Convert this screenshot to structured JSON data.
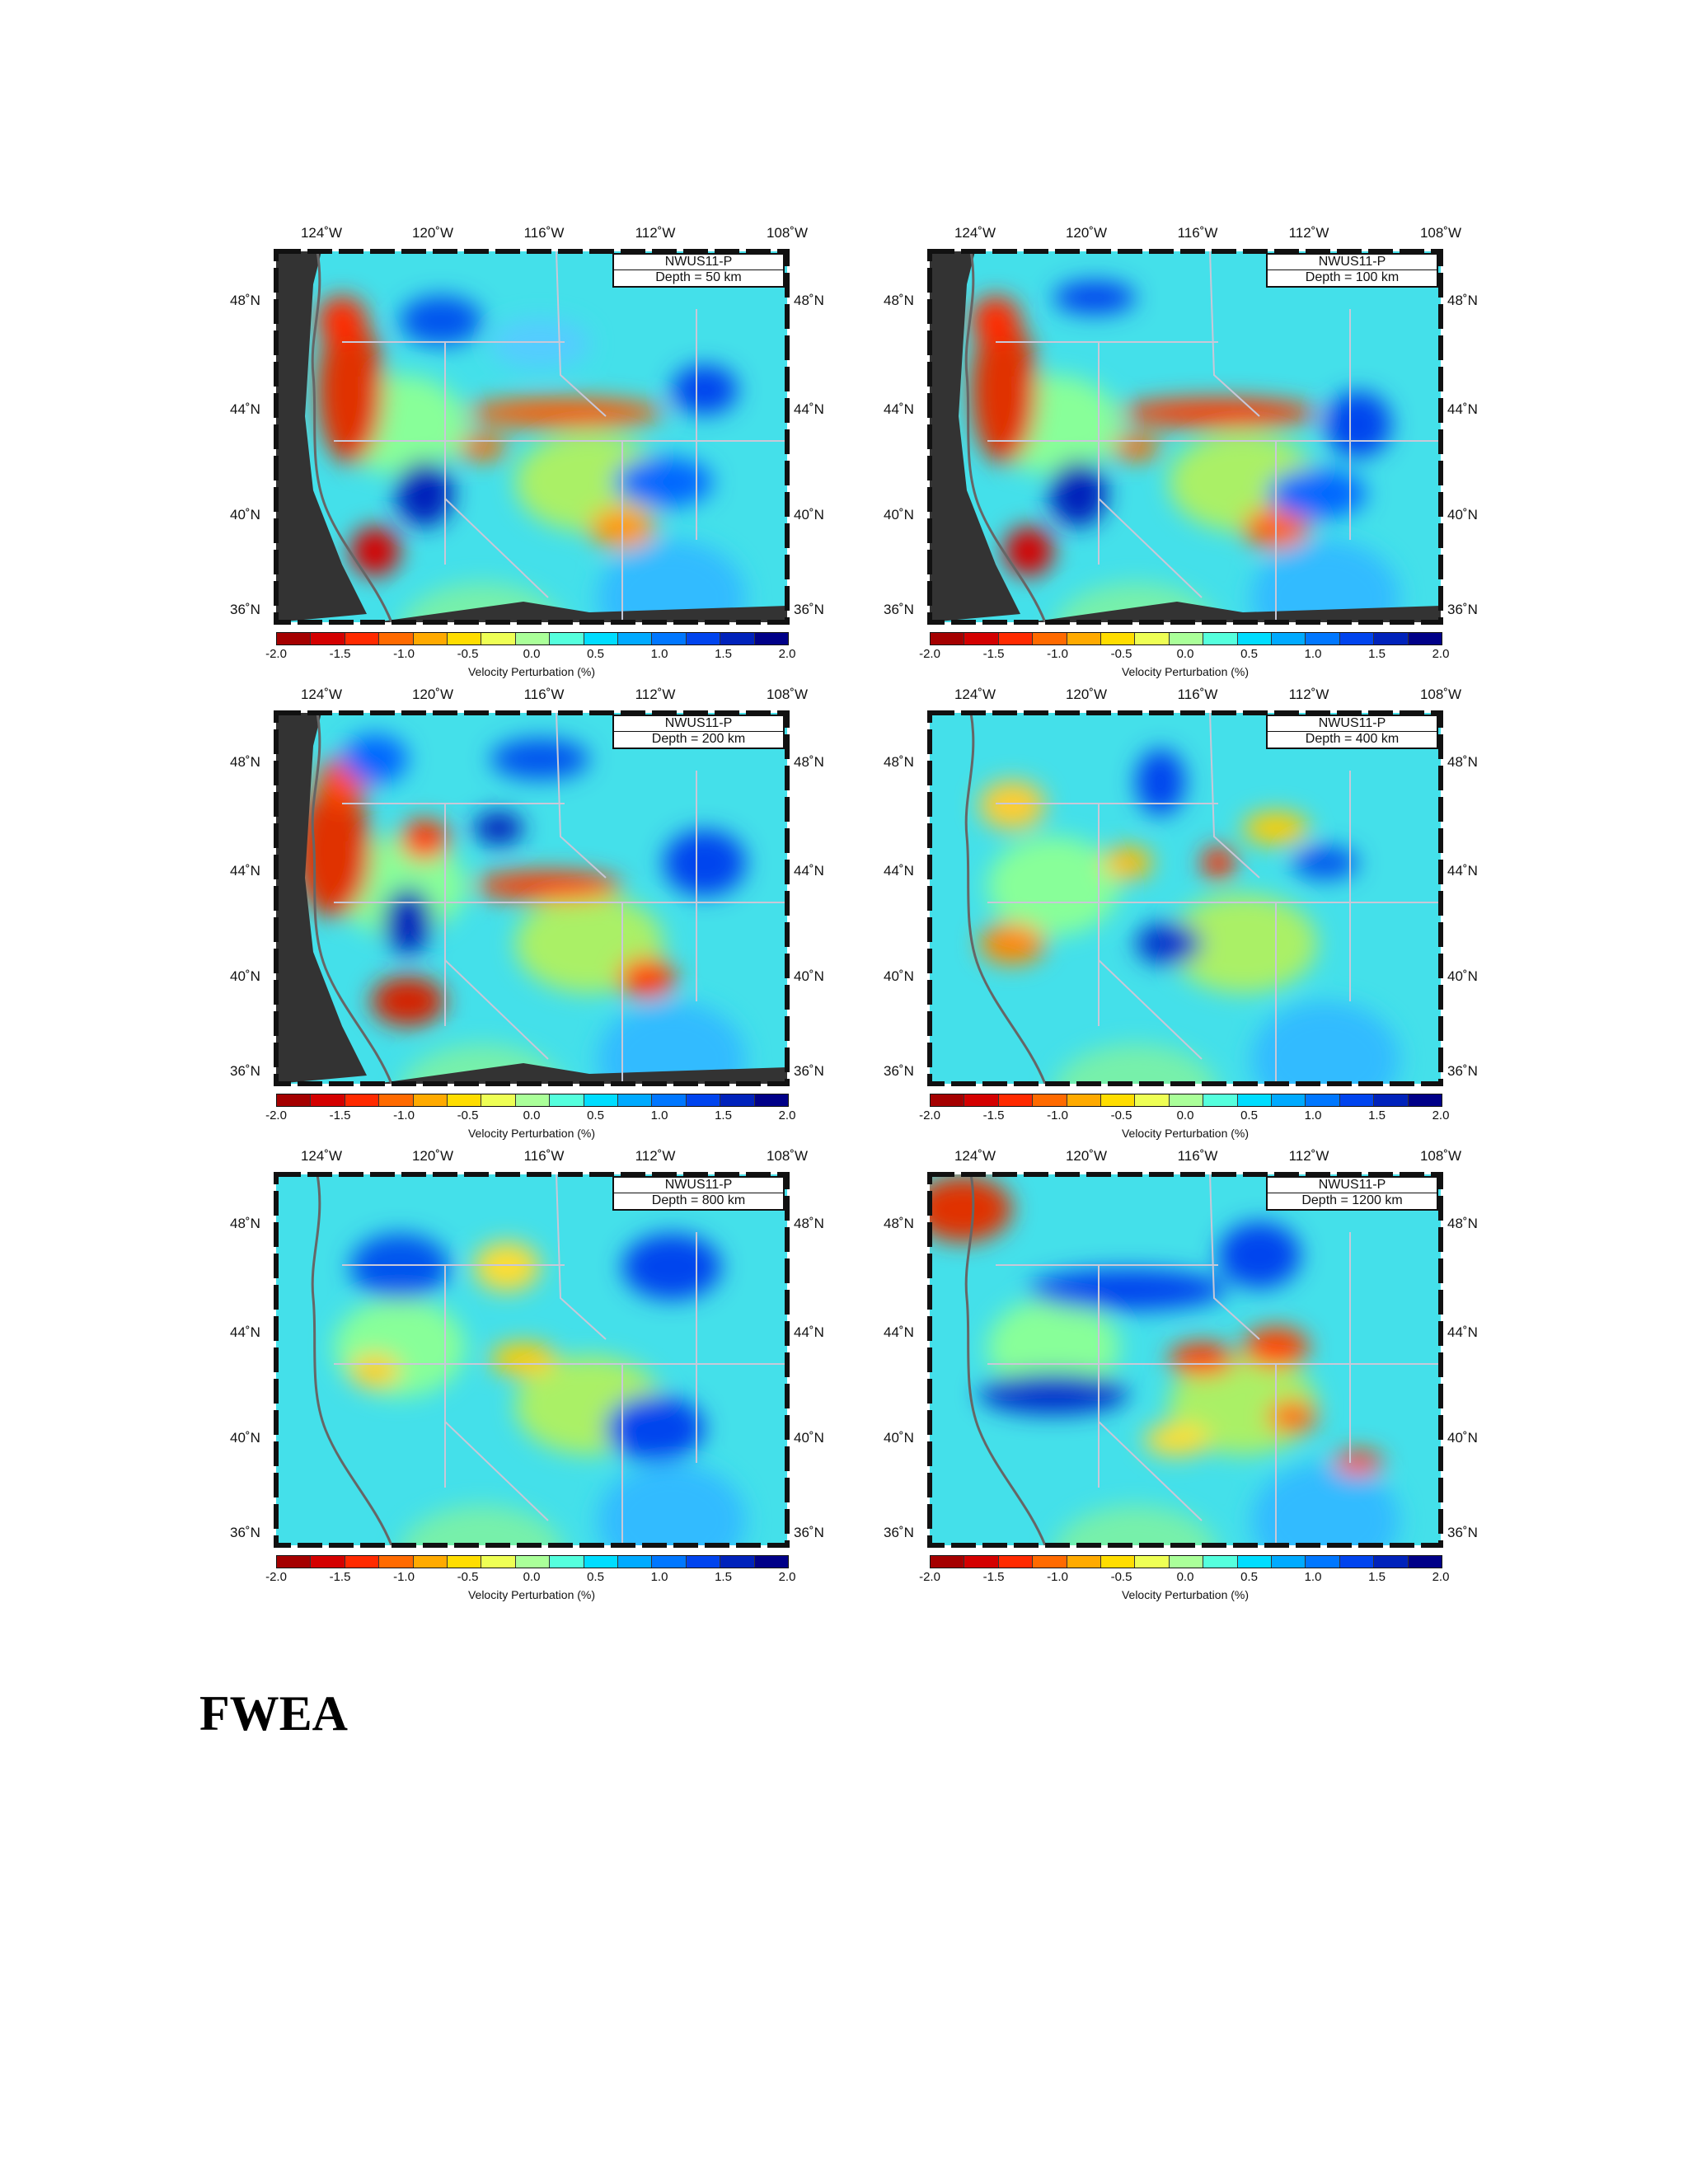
{
  "map_labels": {
    "longitudes": [
      "124˚W",
      "120˚W",
      "116˚W",
      "112˚W",
      "108˚W"
    ],
    "latitudes": [
      "48˚N",
      "44˚N",
      "40˚N",
      "36˚N"
    ]
  },
  "colorbar": {
    "ticks": [
      "-2.0",
      "-1.5",
      "-1.0",
      "-0.5",
      "0.0",
      "0.5",
      "1.0",
      "1.5",
      "2.0"
    ],
    "title": "Velocity Perturbation (%)",
    "colors": [
      "#a50000",
      "#d40000",
      "#ff2a00",
      "#ff6a00",
      "#ffaa00",
      "#ffdd00",
      "#eeff55",
      "#aaff99",
      "#55ffdd",
      "#00ddff",
      "#00aaff",
      "#0077ff",
      "#0044ee",
      "#0022bb",
      "#000088"
    ]
  },
  "panels": [
    {
      "model": "NWUS11-P",
      "depth": "Depth = 50 km"
    },
    {
      "model": "NWUS11-P",
      "depth": "Depth = 100 km"
    },
    {
      "model": "NWUS11-P",
      "depth": "Depth = 200 km"
    },
    {
      "model": "NWUS11-P",
      "depth": "Depth = 400 km"
    },
    {
      "model": "NWUS11-P",
      "depth": "Depth = 800 km"
    },
    {
      "model": "NWUS11-P",
      "depth": "Depth = 1200 km"
    }
  ],
  "heading": "FWEA"
}
